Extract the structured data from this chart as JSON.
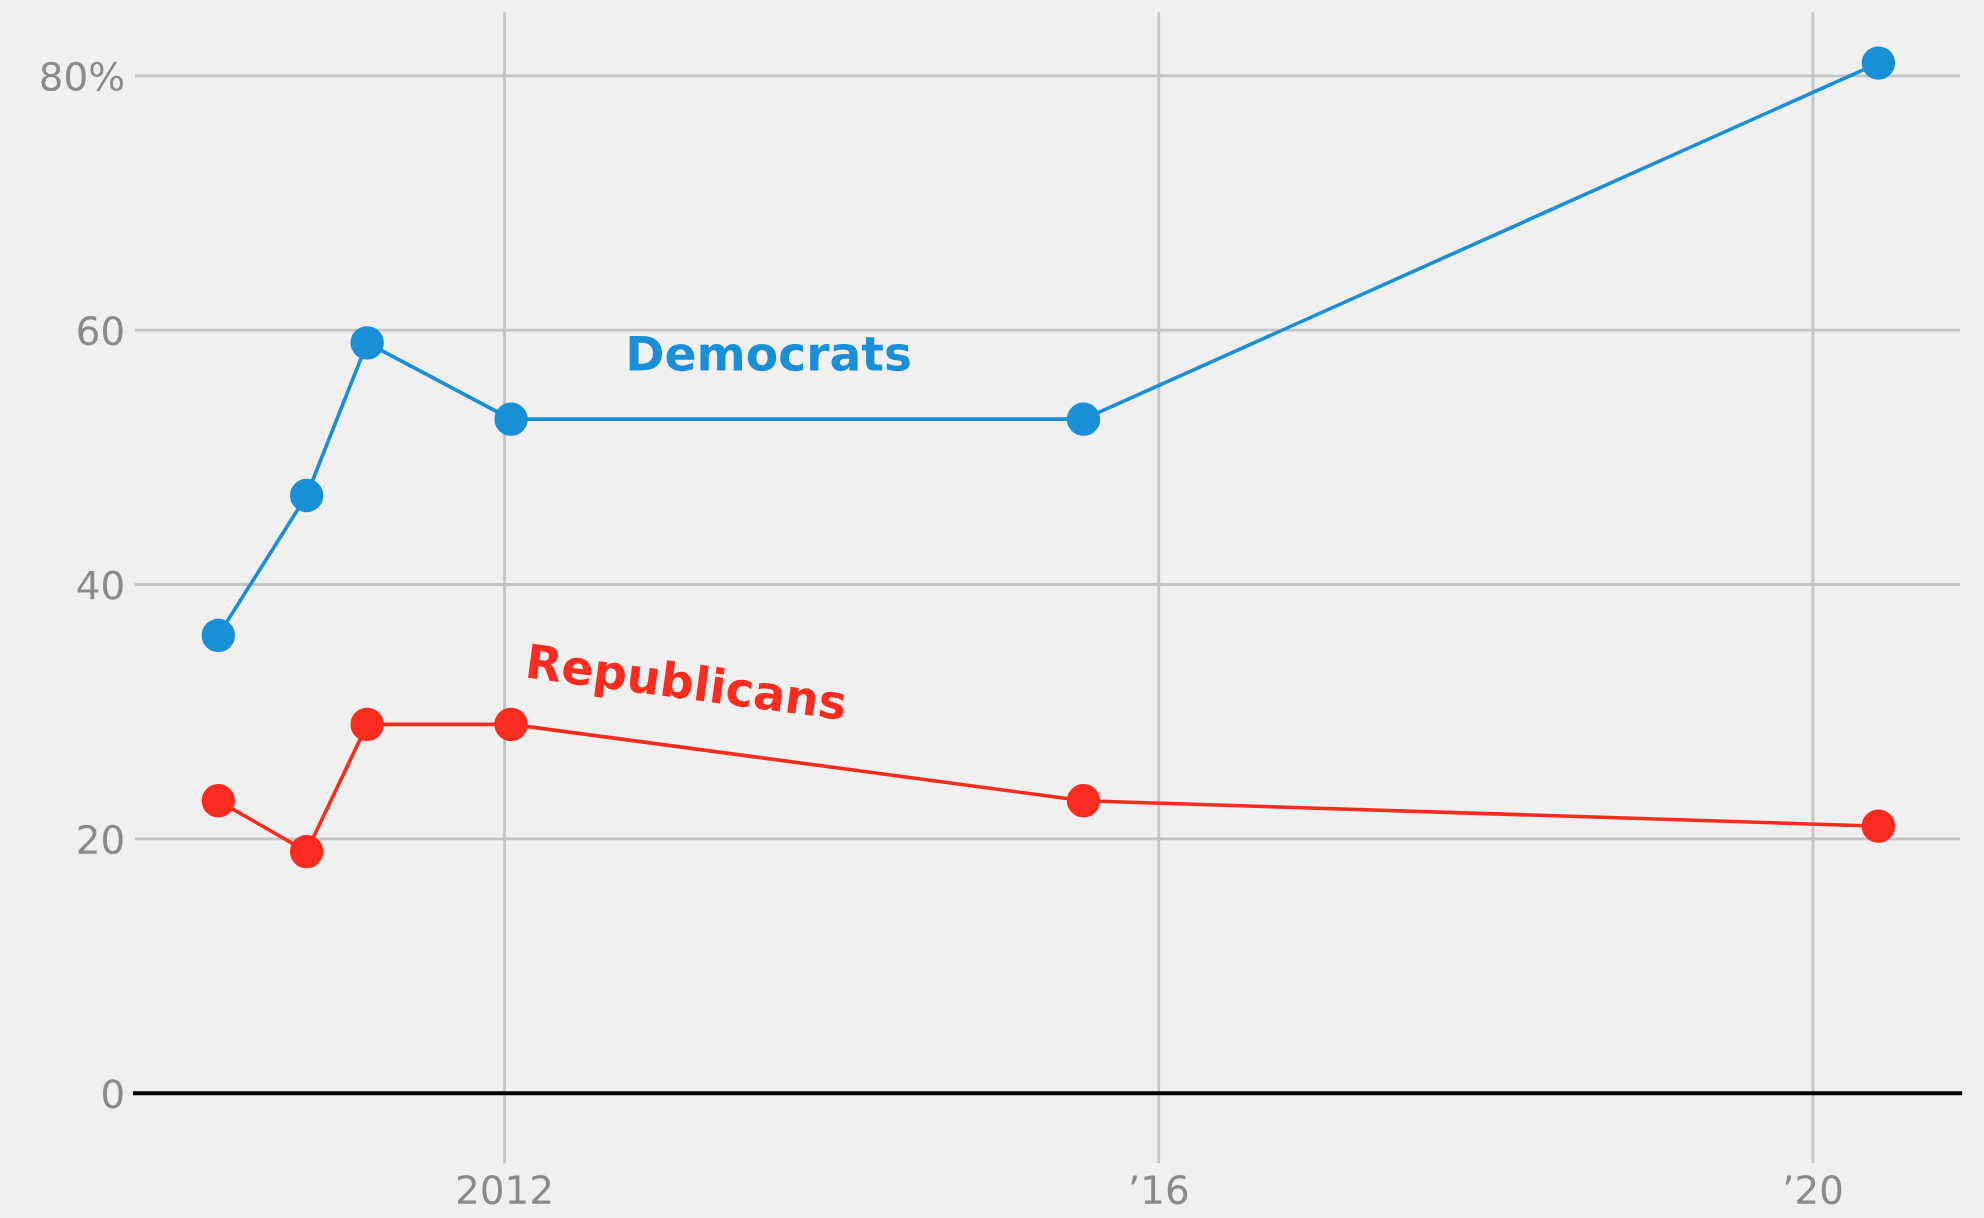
{
  "chart_data": {
    "type": "line",
    "x": [
      2010.25,
      2010.79,
      2011.16,
      2012.04,
      2015.54,
      2020.4
    ],
    "series": [
      {
        "name": "Democrats",
        "color": "#1a8fd8",
        "values": [
          36,
          47,
          59,
          53,
          53,
          81
        ]
      },
      {
        "name": "Republicans",
        "color": "#fa2b1f",
        "values": [
          23,
          19,
          29,
          29,
          23,
          21
        ]
      }
    ],
    "xlim": [
      2009.74,
      2020.9
    ],
    "ylim": [
      -5.5,
      85
    ],
    "xticks": [
      {
        "value": 2012,
        "label": "2012"
      },
      {
        "value": 2016,
        "label": "’16"
      },
      {
        "value": 2020,
        "label": "’20"
      }
    ],
    "yticks": [
      0,
      20,
      40,
      60,
      {
        "value": 80,
        "label": "80%"
      }
    ],
    "grid": true,
    "marker": "circle",
    "line_style": "solid",
    "legend": false
  }
}
